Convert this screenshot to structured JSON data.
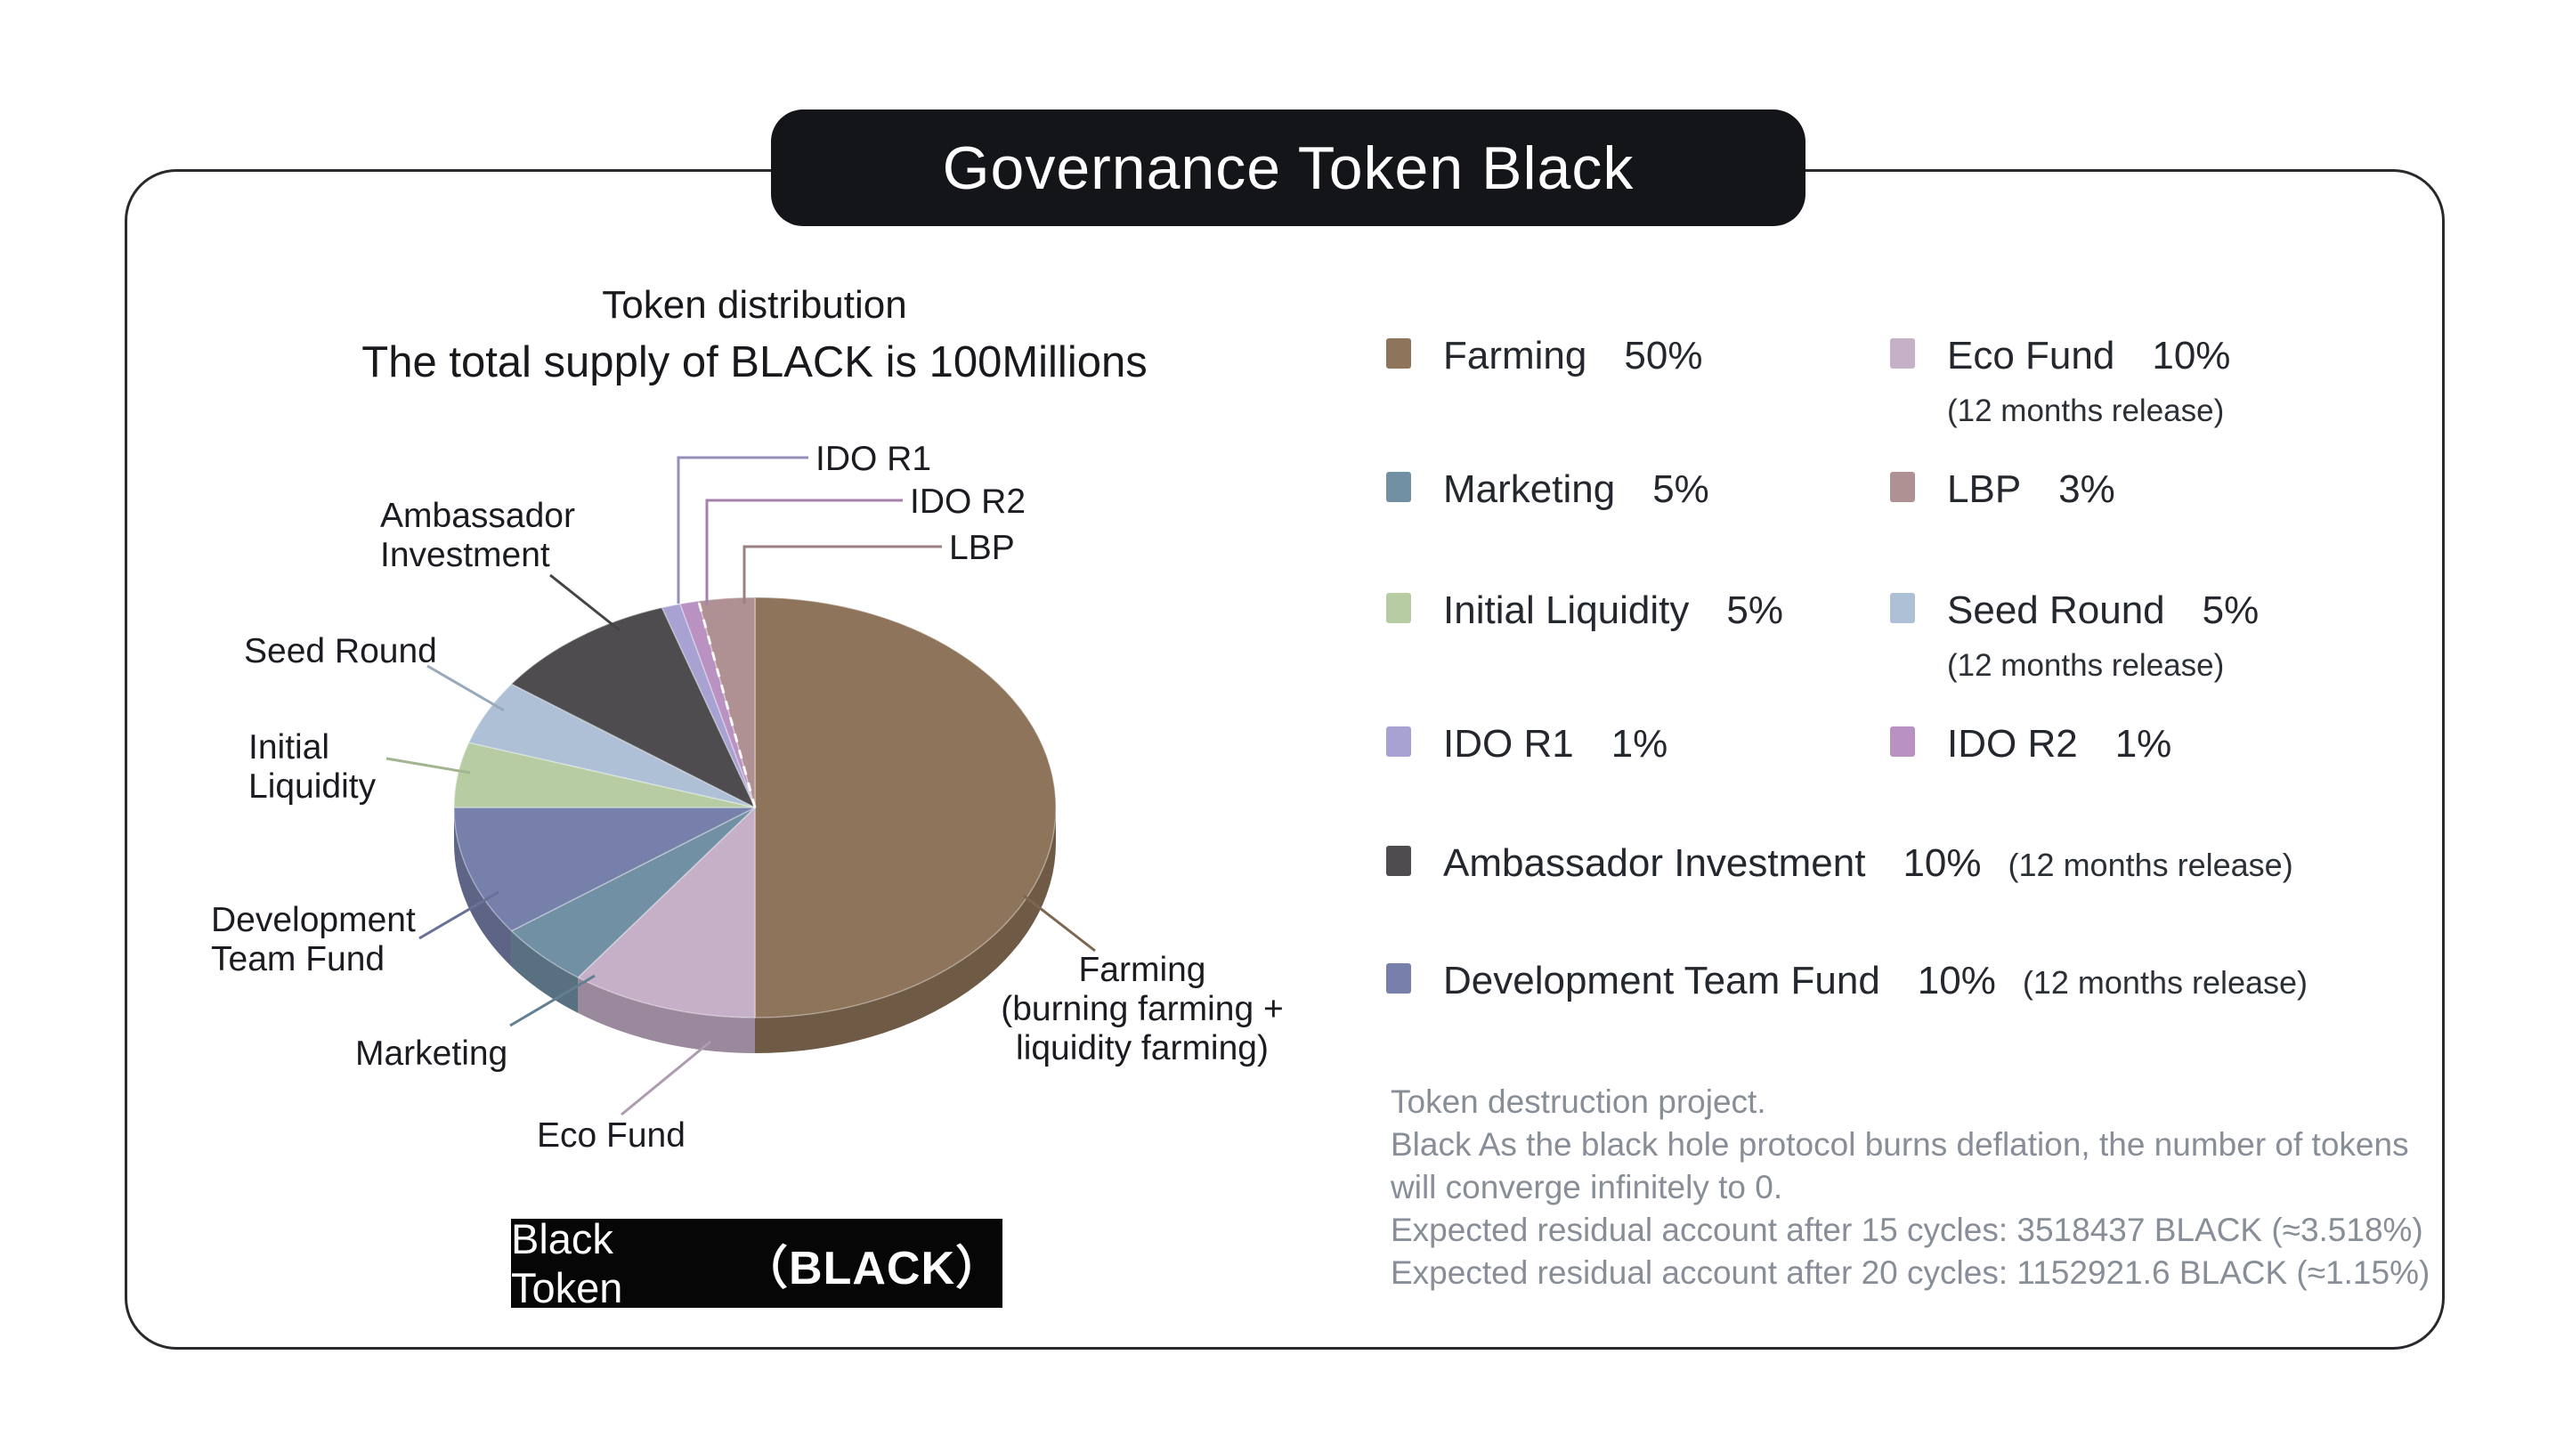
{
  "header": {
    "title": "Governance Token Black"
  },
  "chart": {
    "title_line1": "Token distribution",
    "title_line2": "The total supply of BLACK is 100Millions"
  },
  "chart_data": {
    "type": "pie",
    "title": "Token distribution",
    "subtitle": "The total supply of BLACK is 100Millions",
    "unit": "%",
    "style": "3d-pie",
    "start_angle_deg": 0,
    "direction": "clockwise-from-12",
    "categories": [
      "Farming",
      "Eco Fund",
      "Marketing",
      "Development Team Fund",
      "Initial Liquidity",
      "Seed Round",
      "Ambassador Investment",
      "IDO R1",
      "IDO R2",
      "LBP"
    ],
    "values": [
      50,
      10,
      5,
      10,
      5,
      5,
      10,
      1,
      1,
      3
    ],
    "slices": [
      {
        "id": "farming",
        "label": "Farming",
        "value": 50,
        "color": "#8e745a",
        "callout": [
          "Farming",
          "(burning farming +",
          "liquidity farming)"
        ]
      },
      {
        "id": "eco_fund",
        "label": "Eco Fund",
        "value": 10,
        "color": "#c6b0c8",
        "note": "(12 months release)",
        "callout": [
          "Eco Fund"
        ]
      },
      {
        "id": "marketing",
        "label": "Marketing",
        "value": 5,
        "color": "#7290a4",
        "callout": [
          "Marketing"
        ]
      },
      {
        "id": "dev_team",
        "label": "Development Team Fund",
        "value": 10,
        "color": "#7780ab",
        "note": "(12 months release)",
        "callout": [
          "Development",
          "Team Fund"
        ]
      },
      {
        "id": "initial_liquidity",
        "label": "Initial Liquidity",
        "value": 5,
        "color": "#b8cca4",
        "callout": [
          "Initial",
          "Liquidity"
        ]
      },
      {
        "id": "seed_round",
        "label": "Seed Round",
        "value": 5,
        "color": "#adc0d5",
        "note": "(12 months release)",
        "callout": [
          "Seed Round"
        ]
      },
      {
        "id": "ambassador",
        "label": "Ambassador Investment",
        "value": 10,
        "color": "#4e4c4e",
        "note": "(12 months release)",
        "callout": [
          "Ambassador",
          "Investment"
        ]
      },
      {
        "id": "ido_r1",
        "label": "IDO R1",
        "value": 1,
        "color": "#a7a2d2",
        "callout": [
          "IDO R1"
        ]
      },
      {
        "id": "ido_r2",
        "label": "IDO R2",
        "value": 1,
        "color": "#ba92c1",
        "callout": [
          "IDO R2"
        ]
      },
      {
        "id": "lbp",
        "label": "LBP",
        "value": 3,
        "color": "#b09193",
        "callout": [
          "LBP"
        ]
      }
    ]
  },
  "legend": {
    "items": [
      {
        "slice": "farming",
        "label": "Farming",
        "pct": "50%"
      },
      {
        "slice": "eco_fund",
        "label": "Eco Fund",
        "pct": "10%",
        "note": "(12 months release)",
        "note_placement": "below"
      },
      {
        "slice": "marketing",
        "label": "Marketing",
        "pct": "5%"
      },
      {
        "slice": "lbp",
        "label": "LBP",
        "pct": "3%"
      },
      {
        "slice": "initial_liquidity",
        "label": "Initial Liquidity",
        "pct": "5%"
      },
      {
        "slice": "seed_round",
        "label": "Seed Round",
        "pct": "5%",
        "note": "(12 months release)",
        "note_placement": "below"
      },
      {
        "slice": "ido_r1",
        "label": "IDO R1",
        "pct": "1%"
      },
      {
        "slice": "ido_r2",
        "label": "IDO R2",
        "pct": "1%"
      },
      {
        "slice": "ambassador",
        "label": "Ambassador Investment",
        "pct": "10%",
        "note": "(12 months release)",
        "note_placement": "inline",
        "span": 2
      },
      {
        "slice": "dev_team",
        "label": "Development Team Fund",
        "pct": "10%",
        "note": "(12 months release)",
        "note_placement": "inline",
        "span": 2
      }
    ]
  },
  "badge": {
    "text": "Black Token",
    "ticker": "（BLACK）"
  },
  "notes": {
    "lines": [
      "Token destruction project.",
      "Black As the black hole protocol burns deflation, the number of tokens",
      "will converge infinitely to 0.",
      "Expected residual account after 15 cycles: 3518437 BLACK (≈3.518%)",
      "Expected residual account after 20 cycles: 1152921.6 BLACK (≈1.15%)"
    ]
  },
  "colors": {
    "pill_bg": "#141519",
    "badge_bg": "#060607",
    "text": "#24282e",
    "muted": "#878e97"
  }
}
